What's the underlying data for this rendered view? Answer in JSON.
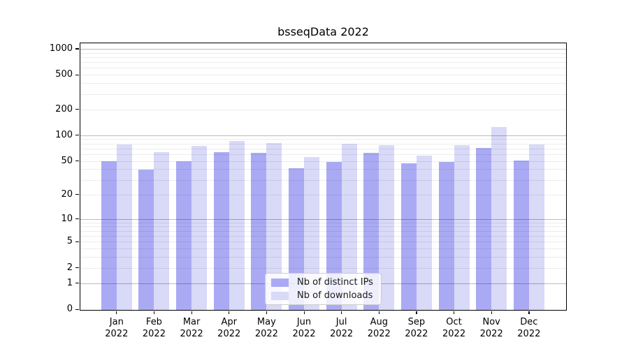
{
  "chart_data": {
    "type": "bar",
    "title": "bsseqData 2022",
    "categories": [
      "Jan 2022",
      "Feb 2022",
      "Mar 2022",
      "Apr 2022",
      "May 2022",
      "Jun 2022",
      "Jul 2022",
      "Aug 2022",
      "Sep 2022",
      "Oct 2022",
      "Nov 2022",
      "Dec 2022"
    ],
    "series": [
      {
        "name": "Nb of distinct IPs",
        "color": "#aaaaf4",
        "values": [
          51,
          40,
          51,
          65,
          63,
          42,
          50,
          64,
          48,
          50,
          72,
          52
        ]
      },
      {
        "name": "Nb of downloads",
        "color": "#d9d9f8",
        "values": [
          79,
          65,
          77,
          88,
          82,
          57,
          81,
          78,
          59,
          78,
          126,
          79
        ]
      }
    ],
    "y_axis": {
      "scale": "log1p",
      "tick_values": [
        0,
        1,
        2,
        5,
        10,
        20,
        50,
        100,
        200,
        500,
        1000
      ],
      "major_gridlines": [
        1,
        10,
        100,
        1000
      ],
      "minor_gridlines": [
        2,
        3,
        4,
        5,
        6,
        7,
        8,
        9,
        20,
        30,
        40,
        50,
        60,
        70,
        80,
        90,
        200,
        300,
        400,
        500,
        600,
        700,
        800,
        900
      ],
      "ylim": [
        0,
        1200
      ]
    },
    "x_axis": {
      "year_line": "2022"
    },
    "legend": {
      "position": "lower center",
      "entries": [
        "Nb of distinct IPs",
        "Nb of downloads"
      ]
    },
    "grid": "on",
    "background": "#ffffff"
  }
}
